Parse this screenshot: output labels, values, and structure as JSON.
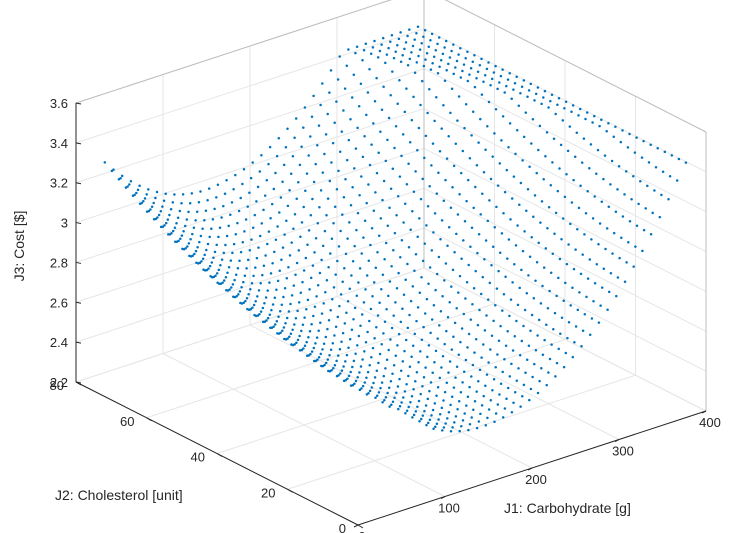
{
  "chart_data": {
    "type": "scatter",
    "dimension": "3d",
    "view": "perspective-like isometric 3D view",
    "grid": true,
    "marker": "point",
    "colors": {
      "points": "#0072BD",
      "axis": "#262626",
      "grid": "#e6e6e6",
      "box": "#bdbdbd"
    },
    "xlabel": "J1: Carbohydrate [g]",
    "ylabel": "J2: Cholesterol [unit]",
    "zlabel": "J3: Cost [$]",
    "xlim": [
      0,
      400
    ],
    "ylim": [
      0,
      80
    ],
    "zlim": [
      2.2,
      3.6
    ],
    "xticks": [
      "0",
      "100",
      "200",
      "300",
      "400"
    ],
    "yticks": [
      "0",
      "20",
      "40",
      "60",
      "80"
    ],
    "zticks": [
      "2.2",
      "2.4",
      "2.6",
      "2.8",
      "3",
      "3.2",
      "3.4",
      "3.6"
    ],
    "surface_description": "Pareto front point cloud: cost rises from ~2.45 at low cholesterol/mid carbohydrate to ~3.4 at the high-carbohydrate and high-cholesterol edges",
    "sample_points": [
      {
        "x": 40,
        "y": 72,
        "z": 3.02
      },
      {
        "x": 120,
        "y": 75,
        "z": 3.35
      },
      {
        "x": 360,
        "y": 70,
        "z": 3.38
      },
      {
        "x": 380,
        "y": 20,
        "z": 3.3
      },
      {
        "x": 330,
        "y": 5,
        "z": 2.6
      },
      {
        "x": 150,
        "y": 10,
        "z": 2.46
      },
      {
        "x": 60,
        "y": 40,
        "z": 2.6
      }
    ]
  }
}
